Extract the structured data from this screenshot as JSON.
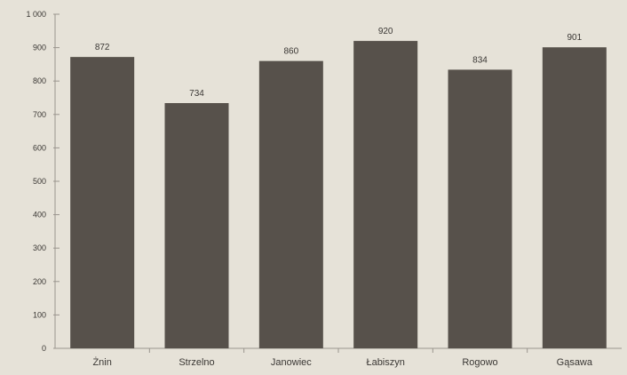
{
  "chart_data": {
    "type": "bar",
    "title": "",
    "xlabel": "",
    "ylabel": "",
    "categories": [
      "Żnin",
      "Strzelno",
      "Janowiec",
      "Łabiszyn",
      "Rogowo",
      "Gąsawa"
    ],
    "values": [
      872,
      734,
      860,
      920,
      834,
      901
    ],
    "data_labels": [
      "872",
      "734",
      "860",
      "920",
      "834",
      "901"
    ],
    "y_ticks": [
      0,
      100,
      200,
      300,
      400,
      500,
      600,
      700,
      800,
      900,
      1000
    ],
    "y_tick_labels": [
      "0",
      "100",
      "200",
      "300",
      "400",
      "500",
      "600",
      "700",
      "800",
      "900",
      "1 000"
    ],
    "ylim": [
      0,
      1000
    ],
    "grid": false,
    "legend": "none",
    "colors": {
      "background": "#e6e2d8",
      "bar": "#57514b",
      "axis": "#9a958e",
      "text": "#3a3734"
    }
  }
}
